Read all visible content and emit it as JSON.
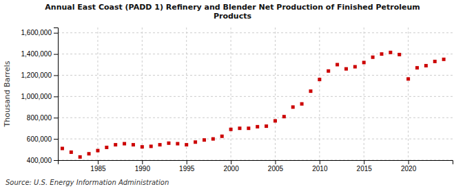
{
  "chart_data": {
    "type": "scatter",
    "title": "Annual East Coast (PADD 1) Refinery and Blender Net Production of Finished Petroleum\nProducts",
    "ylabel": "Thousand Barrels",
    "source": "Source: U.S. Energy Information Administration",
    "color": "#cc0000",
    "marker": "square",
    "grid": true,
    "x": [
      1981,
      1982,
      1983,
      1984,
      1985,
      1986,
      1987,
      1988,
      1989,
      1990,
      1991,
      1992,
      1993,
      1994,
      1995,
      1996,
      1997,
      1998,
      1999,
      2000,
      2001,
      2002,
      2003,
      2004,
      2005,
      2006,
      2007,
      2008,
      2009,
      2010,
      2011,
      2012,
      2013,
      2014,
      2015,
      2016,
      2017,
      2018,
      2019,
      2020,
      2021,
      2022,
      2023,
      2024
    ],
    "values": [
      510000,
      475000,
      430000,
      460000,
      490000,
      520000,
      545000,
      555000,
      545000,
      525000,
      530000,
      545000,
      560000,
      555000,
      545000,
      570000,
      590000,
      600000,
      625000,
      690000,
      700000,
      700000,
      715000,
      720000,
      770000,
      810000,
      900000,
      930000,
      1050000,
      1160000,
      1240000,
      1300000,
      1260000,
      1280000,
      1320000,
      1370000,
      1400000,
      1415000,
      1395000,
      1165000,
      1270000,
      1290000,
      1330000,
      1350000
    ],
    "xlim": [
      1980.5,
      2025
    ],
    "xticks": [
      1985,
      1990,
      1995,
      2000,
      2005,
      2010,
      2015,
      2020
    ],
    "ylim": [
      400000,
      1650000
    ],
    "yticks": [
      {
        "value": 400000,
        "label": "400,000"
      },
      {
        "value": 600000,
        "label": "600,000"
      },
      {
        "value": 800000,
        "label": "800,000"
      },
      {
        "value": 1000000,
        "label": "1,000,000"
      },
      {
        "value": 1200000,
        "label": "1,200,000"
      },
      {
        "value": 1400000,
        "label": "1,400,000"
      },
      {
        "value": 1600000,
        "label": "1,600,000"
      }
    ]
  }
}
